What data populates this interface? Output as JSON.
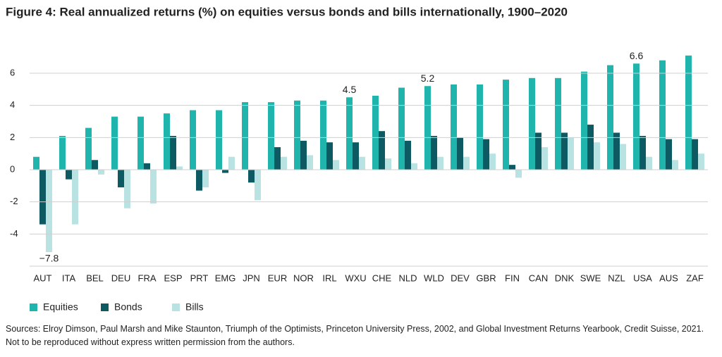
{
  "chart_data": {
    "type": "bar",
    "title": "Figure 4: Real annualized returns (%) on equities versus bonds and bills internationally, 1900–2020",
    "categories": [
      "AUT",
      "ITA",
      "BEL",
      "DEU",
      "FRA",
      "ESP",
      "PRT",
      "EMG",
      "JPN",
      "EUR",
      "NOR",
      "IRL",
      "WXU",
      "CHE",
      "NLD",
      "WLD",
      "DEV",
      "GBR",
      "FIN",
      "CAN",
      "DNK",
      "SWE",
      "NZL",
      "USA",
      "AUS",
      "ZAF"
    ],
    "series": [
      {
        "name": "Equities",
        "color": "#1fb5ad",
        "values": [
          0.8,
          2.1,
          2.6,
          3.3,
          3.3,
          3.5,
          3.7,
          3.7,
          4.2,
          4.2,
          4.3,
          4.3,
          4.5,
          4.6,
          5.1,
          5.2,
          5.3,
          5.3,
          5.6,
          5.7,
          5.7,
          6.1,
          6.5,
          6.6,
          6.8,
          7.1
        ],
        "value_labels": [
          null,
          null,
          null,
          null,
          null,
          null,
          null,
          null,
          null,
          null,
          null,
          null,
          "4.5",
          null,
          null,
          "5.2",
          null,
          null,
          null,
          null,
          null,
          null,
          null,
          "6.6",
          null,
          null
        ]
      },
      {
        "name": "Bonds",
        "color": "#0e5a63",
        "values": [
          -3.4,
          -0.6,
          0.6,
          -1.1,
          0.4,
          2.1,
          -1.3,
          -0.2,
          -0.8,
          1.4,
          1.8,
          1.7,
          1.7,
          2.4,
          1.8,
          2.1,
          2.0,
          1.9,
          0.3,
          2.3,
          2.3,
          2.8,
          2.3,
          2.1,
          1.9,
          1.9
        ]
      },
      {
        "name": "Bills",
        "color": "#b9e2e2",
        "values": [
          -7.8,
          -3.4,
          -0.3,
          -2.4,
          -2.1,
          0.2,
          -1.1,
          0.8,
          -1.9,
          0.8,
          0.9,
          0.6,
          0.8,
          0.7,
          0.4,
          0.8,
          0.8,
          1.0,
          -0.5,
          1.4,
          2.0,
          1.7,
          1.6,
          0.8,
          0.6,
          1.0
        ],
        "value_labels": [
          "−7.8",
          null,
          null,
          null,
          null,
          null,
          null,
          null,
          null,
          null,
          null,
          null,
          null,
          null,
          null,
          null,
          null,
          null,
          null,
          null,
          null,
          null,
          null,
          null,
          null,
          null
        ]
      }
    ],
    "ylim": [
      -6,
      7.4
    ],
    "yticks": [
      -4,
      -2,
      0,
      2,
      4,
      6
    ],
    "grid": true,
    "source": "Sources: Elroy Dimson, Paul Marsh and Mike Staunton, Triumph of the Optimists, Princeton University Press, 2002, and Global Investment Returns Yearbook, Credit Suisse, 2021. Not to be reproduced without express written permission from the authors."
  }
}
